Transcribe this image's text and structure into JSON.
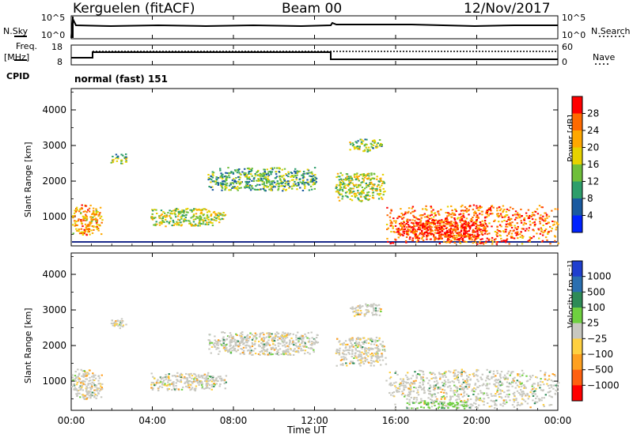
{
  "header": {
    "station": "Kerguelen (fitACF)",
    "beam": "Beam 00",
    "date": "12/Nov/2017"
  },
  "side_labels": {
    "nsky": "N.Sky",
    "nsearch": "N.Search",
    "freq_line1": "Freq.",
    "freq_line2": "[MHz]",
    "cpid": "CPID",
    "nave": "Nave"
  },
  "nsky_panel": {
    "left_ticks": [
      "10^5",
      "10^0"
    ],
    "right_ticks": [
      "10^5",
      "10^0"
    ]
  },
  "freq_panel": {
    "left_ticks": [
      "18",
      "8"
    ],
    "right_ticks": [
      "60",
      "0"
    ]
  },
  "cpid_text": "normal (fast) 151",
  "power_colorbar": {
    "label": "Power [dB]",
    "ticks": [
      "28",
      "24",
      "20",
      "16",
      "12",
      "8",
      "4"
    ],
    "colors": [
      "#ff0000",
      "#ff6a00",
      "#ffa800",
      "#e6d200",
      "#6fbf3a",
      "#2e9e6b",
      "#1a5aa0",
      "#0022ff"
    ]
  },
  "velocity_colorbar": {
    "label": "Velocity [m s⁻¹]",
    "ticks": [
      "1000",
      "500",
      "100",
      "25",
      "−25",
      "−100",
      "−500",
      "−1000"
    ],
    "colors": [
      "#1f3fcf",
      "#2a6fb0",
      "#2e8b57",
      "#6fd040",
      "#c8c8c0",
      "#ffd040",
      "#ffa020",
      "#ff6010",
      "#ff0000"
    ]
  },
  "x_axis": {
    "label": "Time UT",
    "ticks": [
      "00:00",
      "04:00",
      "08:00",
      "12:00",
      "16:00",
      "20:00",
      "00:00"
    ]
  },
  "chart_data": [
    {
      "type": "heatmap",
      "name": "Power",
      "title": "Kerguelen (fitACF) Beam 00 12/Nov/2017",
      "xlabel": "Time UT",
      "ylabel": "Slant Range [km]",
      "colorbar_label": "Power [dB]",
      "x_range_hours": [
        0,
        24
      ],
      "ylim": [
        180,
        4600
      ],
      "y_ticks": [
        1000,
        2000,
        3000,
        4000
      ],
      "blobs": [
        {
          "t0": 0.0,
          "t1": 1.5,
          "r0": 500,
          "r1": 1350,
          "level": 20
        },
        {
          "t0": 3.9,
          "t1": 7.6,
          "r0": 750,
          "r1": 1250,
          "level": 14
        },
        {
          "t0": 1.9,
          "t1": 2.7,
          "r0": 2500,
          "r1": 2800,
          "level": 12
        },
        {
          "t0": 6.7,
          "t1": 12.2,
          "r0": 1750,
          "r1": 2400,
          "level": 10
        },
        {
          "t0": 13.0,
          "t1": 15.5,
          "r0": 1450,
          "r1": 2250,
          "level": 14
        },
        {
          "t0": 13.7,
          "t1": 15.3,
          "r0": 2850,
          "r1": 3200,
          "level": 12
        },
        {
          "t0": 15.5,
          "t1": 24.0,
          "r0": 250,
          "r1": 1350,
          "level": 24
        },
        {
          "t0": 16.0,
          "t1": 20.5,
          "r0": 350,
          "r1": 950,
          "level": 28
        }
      ]
    },
    {
      "type": "heatmap",
      "name": "Velocity",
      "xlabel": "Time UT",
      "ylabel": "Slant Range [km]",
      "colorbar_label": "Velocity [m s⁻¹]",
      "x_range_hours": [
        0,
        24
      ],
      "ylim": [
        180,
        4600
      ],
      "y_ticks": [
        1000,
        2000,
        3000,
        4000
      ],
      "blobs": [
        {
          "t0": 0.0,
          "t1": 1.5,
          "r0": 500,
          "r1": 1350,
          "level": 0
        },
        {
          "t0": 3.9,
          "t1": 7.6,
          "r0": 750,
          "r1": 1250,
          "level": -50
        },
        {
          "t0": 1.9,
          "t1": 2.7,
          "r0": 2500,
          "r1": 2800,
          "level": 0
        },
        {
          "t0": 6.7,
          "t1": 12.2,
          "r0": 1750,
          "r1": 2400,
          "level": 0
        },
        {
          "t0": 13.0,
          "t1": 15.5,
          "r0": 1450,
          "r1": 2250,
          "level": 0
        },
        {
          "t0": 13.7,
          "t1": 15.3,
          "r0": 2850,
          "r1": 3200,
          "level": 0
        },
        {
          "t0": 15.5,
          "t1": 24.0,
          "r0": 250,
          "r1": 1350,
          "level": 0
        },
        {
          "t0": 16.5,
          "t1": 19.5,
          "r0": 250,
          "r1": 450,
          "level": 80
        }
      ]
    }
  ]
}
